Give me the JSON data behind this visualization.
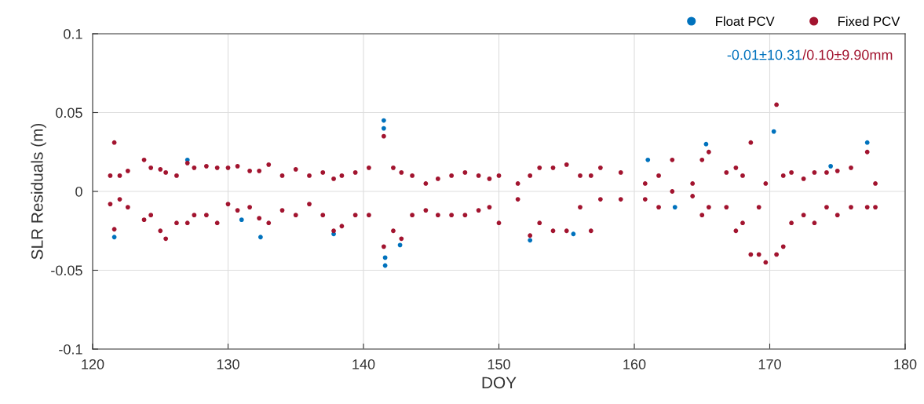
{
  "chart_data": {
    "type": "scatter",
    "xlabel": "DOY",
    "ylabel": "SLR Residuals (m)",
    "xlim": [
      120,
      180
    ],
    "xticks": [
      120,
      130,
      140,
      150,
      160,
      170,
      180
    ],
    "ylim": [
      -0.1,
      0.1
    ],
    "yticks": [
      -0.1,
      -0.05,
      0,
      0.05,
      0.1
    ],
    "grid": true,
    "legend": "top right",
    "marker": "circle",
    "annotations": [
      "-0.01±10.31",
      "/0.10±9.90mm"
    ],
    "series": [
      {
        "name": "Float PCV",
        "color": "#0072bd",
        "x": [
          121.6,
          127.0,
          131.0,
          132.4,
          137.8,
          141.5,
          141.5,
          141.6,
          141.6,
          142.7,
          152.3,
          155.5,
          161.0,
          163.0,
          165.3,
          170.3,
          174.5,
          177.2
        ],
        "values": [
          -0.029,
          0.02,
          -0.018,
          -0.029,
          -0.027,
          0.045,
          0.04,
          -0.047,
          -0.042,
          -0.034,
          -0.031,
          -0.027,
          0.02,
          -0.01,
          0.03,
          0.038,
          0.016,
          0.031
        ]
      },
      {
        "name": "Fixed PCV",
        "color": "#a2142f",
        "x": [
          121.3,
          121.3,
          121.6,
          121.6,
          122.0,
          122.0,
          122.6,
          122.6,
          123.8,
          123.8,
          124.3,
          124.3,
          125.0,
          125.0,
          125.4,
          125.4,
          126.2,
          126.2,
          127.0,
          127.0,
          127.5,
          127.5,
          128.4,
          128.4,
          129.2,
          129.2,
          130.0,
          130.0,
          130.7,
          130.7,
          131.6,
          131.6,
          132.3,
          132.3,
          133.0,
          133.0,
          134.0,
          134.0,
          135.0,
          135.0,
          136.0,
          136.0,
          137.0,
          137.0,
          137.8,
          137.8,
          138.4,
          138.4,
          139.4,
          139.4,
          140.4,
          140.4,
          141.5,
          141.5,
          142.2,
          142.2,
          142.8,
          142.8,
          143.6,
          143.6,
          144.6,
          144.6,
          145.5,
          145.5,
          146.5,
          146.5,
          147.5,
          147.5,
          148.5,
          148.5,
          149.3,
          149.3,
          150.0,
          150.0,
          151.4,
          151.4,
          152.3,
          152.3,
          153.0,
          153.0,
          154.0,
          154.0,
          155.0,
          155.0,
          156.0,
          156.0,
          156.8,
          156.8,
          157.5,
          157.5,
          159.0,
          159.0,
          160.8,
          160.8,
          161.8,
          161.8,
          162.8,
          162.8,
          164.3,
          164.3,
          165.0,
          165.0,
          165.5,
          165.5,
          166.8,
          166.8,
          167.5,
          167.5,
          168.0,
          168.0,
          168.6,
          168.6,
          169.2,
          169.2,
          169.7,
          169.7,
          170.5,
          170.5,
          171.0,
          171.0,
          171.6,
          171.6,
          172.5,
          172.5,
          173.3,
          173.3,
          174.2,
          174.2,
          175.0,
          175.0,
          176.0,
          176.0,
          177.2,
          177.2,
          177.8,
          177.8
        ],
        "values": [
          -0.008,
          0.01,
          -0.024,
          0.031,
          -0.005,
          0.01,
          -0.01,
          0.013,
          -0.018,
          0.02,
          -0.015,
          0.015,
          -0.025,
          0.014,
          -0.03,
          0.012,
          -0.02,
          0.01,
          -0.02,
          0.018,
          -0.015,
          0.015,
          -0.015,
          0.016,
          -0.02,
          0.015,
          -0.008,
          0.015,
          -0.012,
          0.016,
          -0.01,
          0.013,
          -0.017,
          0.013,
          -0.02,
          0.017,
          -0.012,
          0.01,
          -0.015,
          0.014,
          -0.008,
          0.01,
          -0.015,
          0.012,
          -0.025,
          0.008,
          -0.022,
          0.01,
          -0.015,
          0.012,
          -0.015,
          0.015,
          -0.035,
          0.035,
          -0.025,
          0.015,
          -0.03,
          0.012,
          -0.015,
          0.01,
          -0.012,
          0.005,
          -0.015,
          0.008,
          -0.015,
          0.01,
          -0.015,
          0.012,
          -0.012,
          0.01,
          -0.01,
          0.008,
          -0.02,
          0.01,
          -0.005,
          0.005,
          -0.028,
          0.01,
          -0.02,
          0.015,
          -0.025,
          0.015,
          -0.025,
          0.017,
          -0.01,
          0.01,
          -0.025,
          0.01,
          -0.005,
          0.015,
          -0.005,
          0.012,
          -0.005,
          0.005,
          -0.01,
          0.01,
          0.0,
          0.02,
          -0.003,
          0.005,
          -0.015,
          0.02,
          -0.01,
          0.025,
          -0.01,
          0.012,
          -0.025,
          0.015,
          -0.02,
          0.01,
          -0.04,
          0.031,
          -0.04,
          -0.01,
          -0.045,
          0.005,
          -0.04,
          0.055,
          -0.035,
          0.01,
          -0.02,
          0.012,
          -0.015,
          0.008,
          -0.02,
          0.012,
          -0.01,
          0.012,
          -0.015,
          0.013,
          -0.01,
          0.015,
          -0.01,
          0.025,
          -0.01,
          0.005
        ]
      }
    ]
  }
}
